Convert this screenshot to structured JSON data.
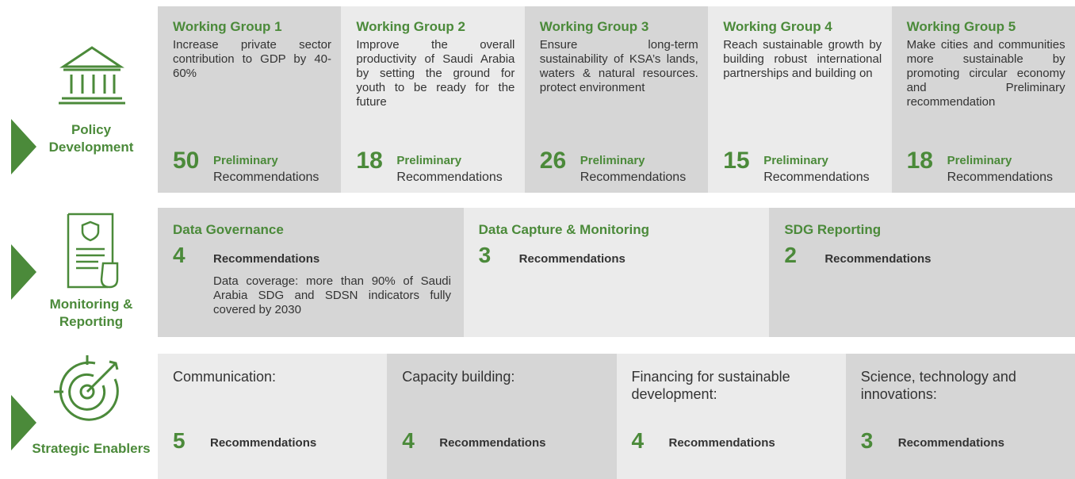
{
  "rows": [
    {
      "label": "Policy Development",
      "cards": [
        {
          "title": "Working Group 1",
          "description": "Increase private sector contribution to GDP by 40-60%",
          "count": 50,
          "count_label": "Preliminary",
          "unit": "Recommendations"
        },
        {
          "title": "Working Group 2",
          "description": "Improve the overall productivity of Saudi Arabia by setting the ground for youth to be ready for the future",
          "count": 18,
          "count_label": "Preliminary",
          "unit": "Recommendations"
        },
        {
          "title": "Working Group 3",
          "description": "Ensure long-term sustainability of KSA’s lands, waters & natural resources. protect environment",
          "count": 26,
          "count_label": "Preliminary",
          "unit": "Recommendations"
        },
        {
          "title": "Working Group 4",
          "description": "Reach sustainable growth by building robust international partnerships and building on",
          "count": 15,
          "count_label": "Preliminary",
          "unit": "Recommendations"
        },
        {
          "title": "Working Group 5",
          "description": "Make cities and communities more sustainable by promoting circular economy and Preliminary recommendation",
          "count": 18,
          "count_label": "Preliminary",
          "unit": "Recommendations"
        }
      ]
    },
    {
      "label": "Monitoring & Reporting",
      "cards": [
        {
          "title": "Data Governance",
          "count": 4,
          "unit": "Recommendations",
          "description": "Data coverage: more than 90% of Saudi Arabia SDG and SDSN indicators fully covered by 2030"
        },
        {
          "title": "Data Capture & Monitoring",
          "count": 3,
          "unit": "Recommendations"
        },
        {
          "title": "SDG Reporting",
          "count": 2,
          "unit": "Recommendations"
        }
      ]
    },
    {
      "label": "Strategic Enablers",
      "cards": [
        {
          "title": "Communication:",
          "count": 5,
          "unit": "Recommendations"
        },
        {
          "title": "Capacity building:",
          "count": 4,
          "unit": "Recommendations"
        },
        {
          "title": "Financing for sustainable development:",
          "count": 4,
          "unit": "Recommendations"
        },
        {
          "title": "Science, technology and innovations:",
          "count": 3,
          "unit": "Recommendations"
        }
      ]
    }
  ]
}
